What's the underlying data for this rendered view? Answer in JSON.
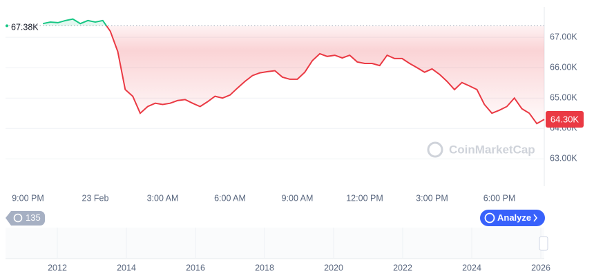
{
  "chart_data": {
    "type": "line",
    "categories": [
      null,
      null,
      null,
      "9:00 PM",
      null,
      null,
      null,
      null,
      null,
      null,
      null,
      null,
      "23 Feb",
      null,
      null,
      null,
      null,
      null,
      null,
      null,
      null,
      "3:00 AM",
      null,
      null,
      null,
      null,
      null,
      null,
      null,
      null,
      "6:00 AM",
      null,
      null,
      null,
      null,
      null,
      null,
      null,
      null,
      "9:00 AM",
      null,
      null,
      null,
      null,
      null,
      null,
      null,
      null,
      "12:00 PM",
      null,
      null,
      null,
      null,
      null,
      null,
      null,
      null,
      "3:00 PM",
      null,
      null,
      null,
      null,
      null,
      null,
      null,
      null,
      "6:00 PM",
      null,
      null,
      null,
      null,
      null,
      null
    ],
    "values": [
      null,
      null,
      null,
      null,
      null,
      67450,
      67500,
      67480,
      67550,
      67600,
      67450,
      67550,
      67500,
      67550,
      67200,
      66530,
      65280,
      65060,
      64500,
      64720,
      64830,
      64790,
      64830,
      64920,
      64950,
      64830,
      64720,
      64880,
      65060,
      65000,
      65100,
      65330,
      65550,
      65740,
      65830,
      65870,
      65900,
      65690,
      65620,
      65620,
      65850,
      66230,
      66460,
      66370,
      66410,
      66320,
      66410,
      66190,
      66140,
      66140,
      66070,
      66410,
      66300,
      66300,
      66140,
      66000,
      65850,
      65960,
      65780,
      65550,
      65280,
      65510,
      65400,
      65280,
      64790,
      64500,
      64600,
      64720,
      65000,
      64650,
      64500,
      64160,
      64300
    ],
    "colors": {
      "up": "#16c784",
      "down": "#ea3943"
    },
    "ylim": [
      62100,
      68000
    ],
    "yticks": [
      {
        "value": 63000,
        "label": "63.00K"
      },
      {
        "value": 64000,
        "label": "64.00K"
      },
      {
        "value": 65000,
        "label": "65.00K"
      },
      {
        "value": 66000,
        "label": "66.00K"
      },
      {
        "value": 67000,
        "label": "67.00K"
      }
    ],
    "grid": true,
    "reference_line": {
      "value": 67380,
      "label": "67.38K"
    },
    "current_price": {
      "value": 64300,
      "label": "64.30K"
    },
    "watermark": "CoinMarketCap"
  },
  "navigator": {
    "xlim": [
      2010.5,
      2026.1
    ],
    "xticks": [
      2012,
      2014,
      2016,
      2018,
      2020,
      2022,
      2024,
      2026
    ]
  },
  "controls": {
    "history_count": "135",
    "analyze_button": "Analyze"
  }
}
